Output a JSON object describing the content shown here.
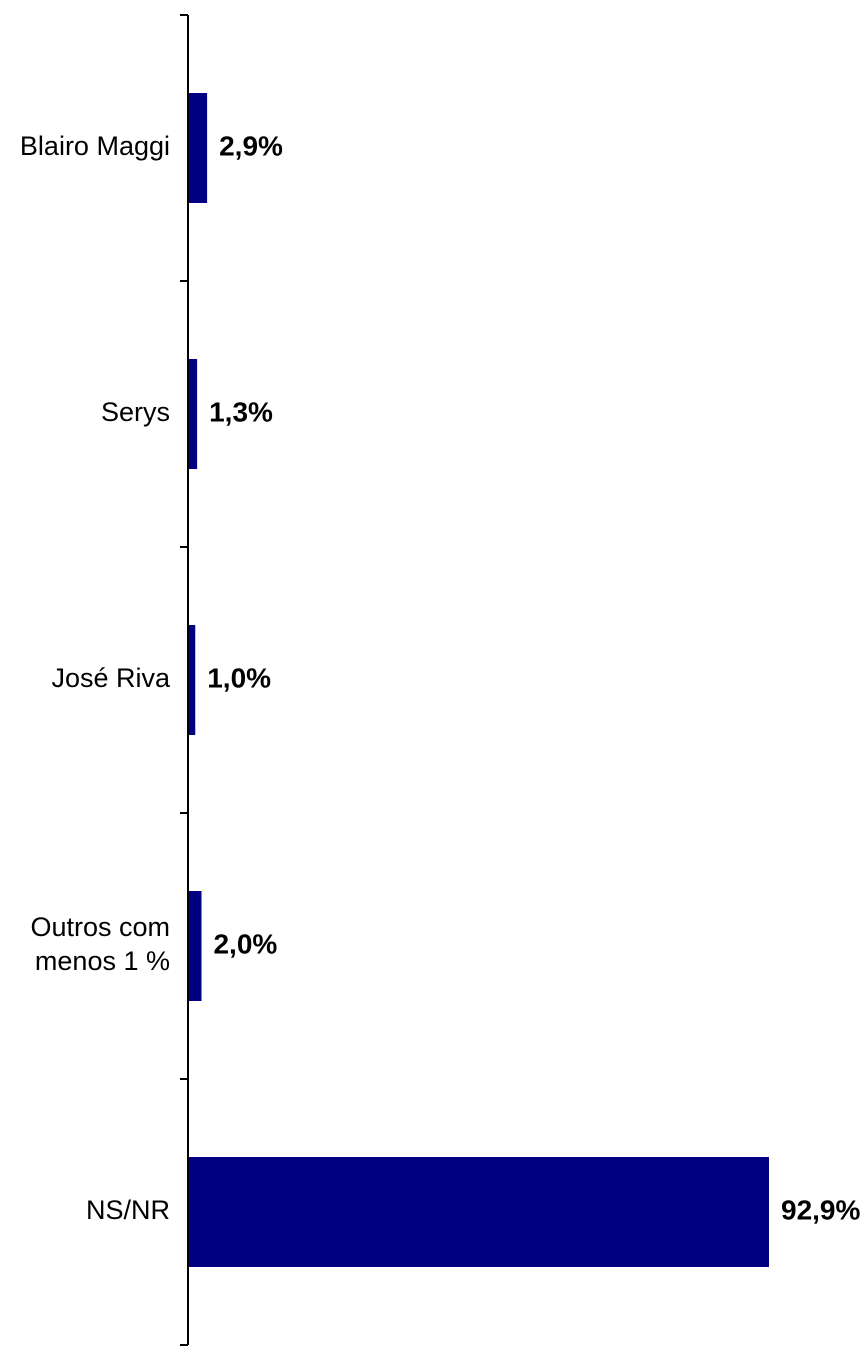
{
  "chart_data": {
    "type": "bar",
    "orientation": "horizontal",
    "categories": [
      "Blairo Maggi",
      "Serys",
      "José Riva",
      "Outros com menos 1 %",
      "NS/NR"
    ],
    "category_lines": [
      [
        "Blairo Maggi"
      ],
      [
        "Serys"
      ],
      [
        "José Riva"
      ],
      [
        "Outros com",
        "menos 1 %"
      ],
      [
        "NS/NR"
      ]
    ],
    "values": [
      2.9,
      1.3,
      1.0,
      2.0,
      92.9
    ],
    "value_labels": [
      "2,9%",
      "1,3%",
      "1,0%",
      "2,0%",
      "92,9%"
    ],
    "bar_color": "#000080",
    "xlim": [
      0,
      100
    ],
    "grid": false,
    "legend": "none"
  }
}
